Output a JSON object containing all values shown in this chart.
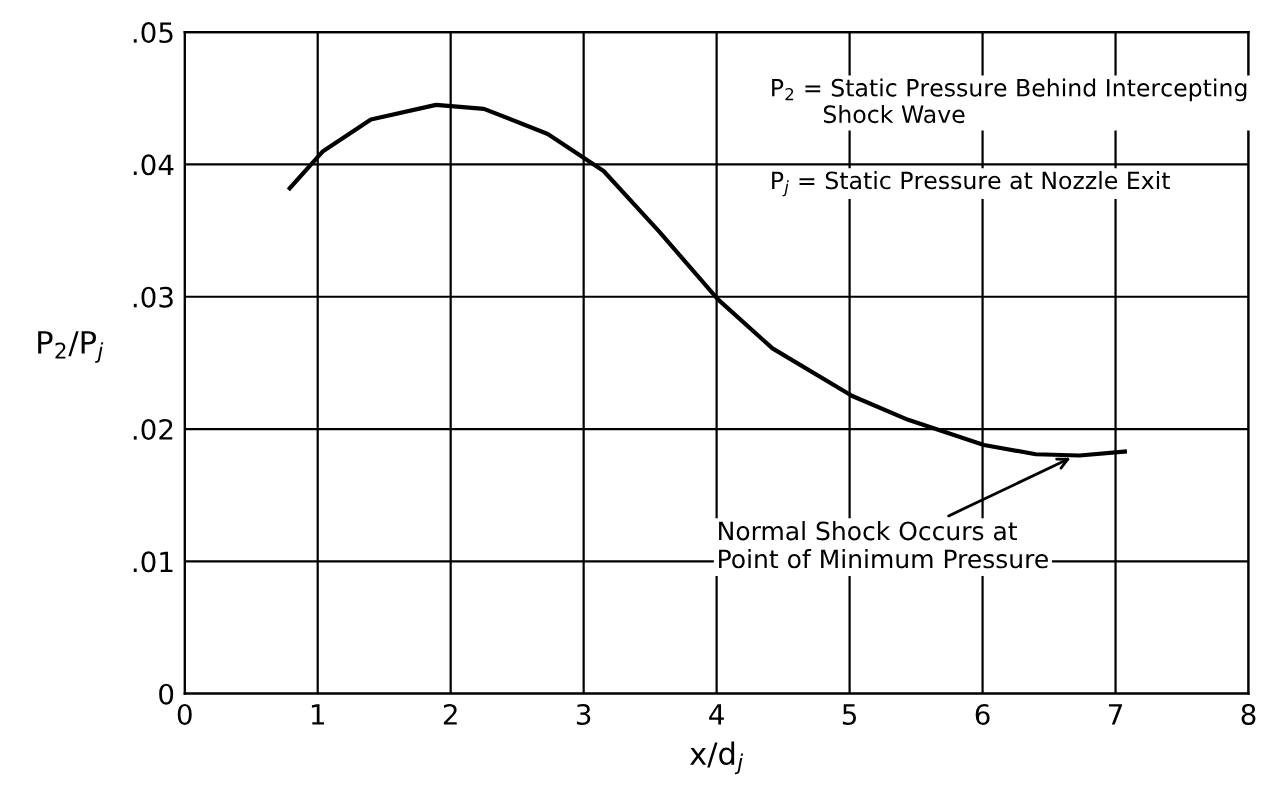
{
  "chart_data": {
    "type": "line",
    "xlabel": "x/d$_{j}$",
    "ylabel": "P$_{2}$/P$_{j}$",
    "x": [
      0.79,
      1.04,
      1.4,
      1.89,
      2.25,
      2.73,
      3.15,
      3.57,
      4.01,
      4.42,
      5.02,
      5.44,
      6.01,
      6.4,
      6.73,
      7.07
    ],
    "series": [
      {
        "color": "#000000",
        "values": [
          0.0382,
          0.041,
          0.0434,
          0.0445,
          0.0442,
          0.0423,
          0.0395,
          0.0349,
          0.0298,
          0.0261,
          0.0225,
          0.0207,
          0.0188,
          0.0181,
          0.018,
          0.0183
        ]
      }
    ],
    "xlim": [
      0,
      8
    ],
    "xticks": [
      0,
      1,
      2,
      3,
      4,
      5,
      6,
      7,
      8
    ],
    "ylim": [
      0,
      0.05
    ],
    "yticks": [
      {
        "value": 0,
        "label": "0"
      },
      {
        "value": 0.01,
        "label": ".01"
      },
      {
        "value": 0.02,
        "label": ".02"
      },
      {
        "value": 0.03,
        "label": ".03"
      },
      {
        "value": 0.04,
        "label": ".04"
      },
      {
        "value": 0.05,
        "label": ".05"
      }
    ],
    "grid": true,
    "marker": "none",
    "line_style": "solid",
    "annotations": [
      "P$_{2}$ = Static Pressure Behind Intercepting\n       Shock Wave",
      "P$_{j}$ = Static Pressure at Nozzle Exit",
      {
        "text": "Normal Shock Occurs at\nPoint of Minimum Pressure",
        "x": 6.7,
        "y": 0.018
      }
    ]
  }
}
